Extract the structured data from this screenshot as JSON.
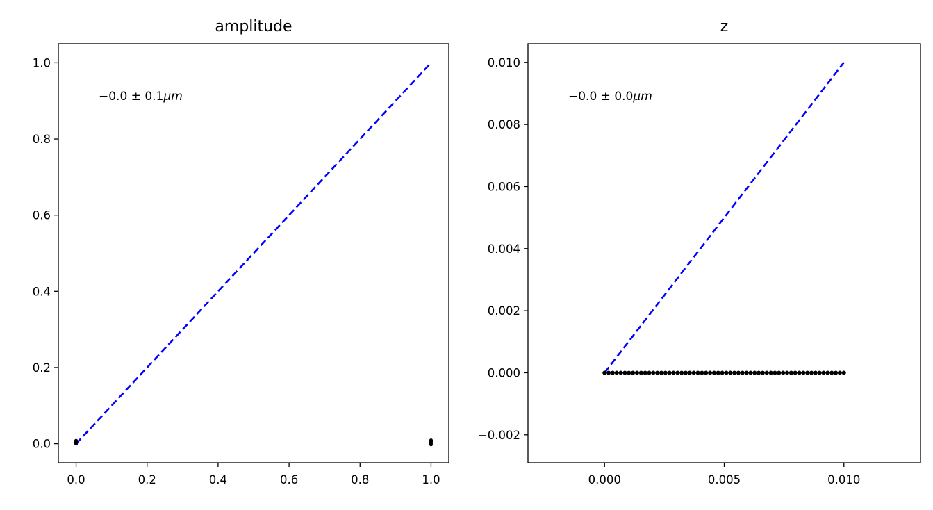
{
  "chart_data": [
    {
      "type": "scatter",
      "title": "amplitude",
      "xlabel": "",
      "ylabel": "",
      "xlim": [
        -0.05,
        1.05
      ],
      "ylim": [
        -0.05,
        1.05
      ],
      "xticks": [
        0.0,
        0.2,
        0.4,
        0.6,
        0.8,
        1.0
      ],
      "xtick_labels": [
        "0.0",
        "0.2",
        "0.4",
        "0.6",
        "0.8",
        "1.0"
      ],
      "yticks": [
        0.0,
        0.2,
        0.4,
        0.6,
        0.8,
        1.0
      ],
      "ytick_labels": [
        "0.0",
        "0.2",
        "0.4",
        "0.6",
        "0.8",
        "1.0"
      ],
      "annotation": {
        "prefix": "−0.0 ± 0.1",
        "unit": "μm"
      },
      "reference_line": {
        "style": "dashed",
        "color": "#0000ff",
        "x": [
          0.0,
          1.0
        ],
        "y": [
          0.0,
          1.0
        ]
      },
      "points": {
        "color": "#000000",
        "x": [
          0.0,
          0.0,
          0.0,
          1.0,
          1.0,
          1.0,
          1.0
        ],
        "y": [
          0.0,
          0.004,
          0.008,
          -0.002,
          0.002,
          0.006,
          0.009
        ]
      },
      "grid": false
    },
    {
      "type": "scatter",
      "title": "z",
      "xlabel": "",
      "ylabel": "",
      "xlim": [
        -0.0032,
        0.0132
      ],
      "ylim": [
        -0.0029,
        0.0106
      ],
      "xticks": [
        0.0,
        0.005,
        0.01
      ],
      "xtick_labels": [
        "0.000",
        "0.005",
        "0.010"
      ],
      "yticks": [
        -0.002,
        0.0,
        0.002,
        0.004,
        0.006,
        0.008,
        0.01
      ],
      "ytick_labels": [
        "−0.002",
        "0.000",
        "0.002",
        "0.004",
        "0.006",
        "0.008",
        "0.010"
      ],
      "annotation": {
        "prefix": "−0.0 ± 0.0",
        "unit": "μm"
      },
      "reference_line": {
        "style": "dashed",
        "color": "#0000ff",
        "x": [
          0.0,
          0.01
        ],
        "y": [
          0.0,
          0.01
        ]
      },
      "points": {
        "color": "#000000",
        "x_range": [
          0.0,
          0.01
        ],
        "y": 0.0,
        "count": 60
      },
      "grid": false
    }
  ]
}
